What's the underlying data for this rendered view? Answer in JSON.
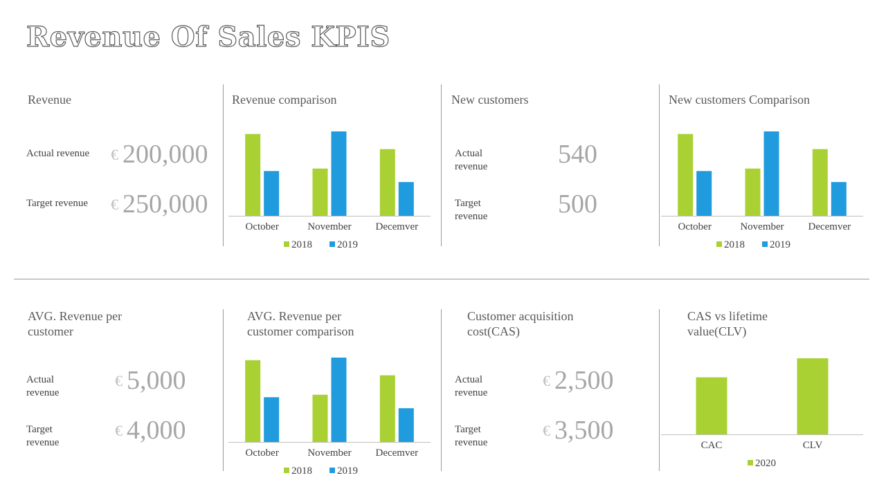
{
  "title": "Revenue Of Sales KPIS",
  "colors": {
    "s2018": "#a9d134",
    "s2019": "#1f9bde",
    "s2020": "#a9d134"
  },
  "kpis": {
    "revenue": {
      "heading": "Revenue",
      "actual_label": "Actual revenue",
      "target_label": "Target revenue",
      "currency": "€",
      "actual_value": "200,000",
      "target_value": "250,000"
    },
    "new_customers": {
      "heading": "New customers",
      "actual_label_1": "Actual",
      "actual_label_2": "revenue",
      "target_label_1": "Target",
      "target_label_2": "revenue",
      "actual_value": "540",
      "target_value": "500"
    },
    "avg_revenue": {
      "heading_1": "AVG. Revenue per",
      "heading_2": "customer",
      "actual_label_1": "Actual",
      "actual_label_2": "revenue",
      "target_label_1": "Target",
      "target_label_2": "revenue",
      "currency": "€",
      "actual_value": "5,000",
      "target_value": "4,000"
    },
    "cas": {
      "heading_1": "Customer acquisition",
      "heading_2": "cost(CAS)",
      "actual_label_1": "Actual",
      "actual_label_2": "revenue",
      "target_label_1": "Target",
      "target_label_2": "revenue",
      "currency": "€",
      "actual_value": "2,500",
      "target_value": "3,500"
    }
  },
  "chart_headings": {
    "revenue_comparison": "Revenue comparison",
    "new_customers_comparison": "New customers Comparison",
    "avg_comparison_1": "AVG. Revenue per",
    "avg_comparison_2": "customer comparison",
    "cas_clv_1": "CAS vs lifetime",
    "cas_clv_2": "value(CLV)"
  },
  "chart_data": [
    {
      "type": "bar",
      "title": "Revenue comparison",
      "categories": [
        "October",
        "November",
        "Decemver"
      ],
      "series": [
        {
          "name": "2018",
          "values": [
            0.97,
            0.56,
            0.79
          ]
        },
        {
          "name": "2019",
          "values": [
            0.53,
            1.0,
            0.4
          ]
        }
      ],
      "ylim": [
        0,
        1
      ],
      "legend": "bottom",
      "grid": false
    },
    {
      "type": "bar",
      "title": "New customers Comparison",
      "categories": [
        "October",
        "November",
        "Decemver"
      ],
      "series": [
        {
          "name": "2018",
          "values": [
            0.97,
            0.56,
            0.79
          ]
        },
        {
          "name": "2019",
          "values": [
            0.53,
            1.0,
            0.4
          ]
        }
      ],
      "ylim": [
        0,
        1
      ],
      "legend": "bottom",
      "grid": false
    },
    {
      "type": "bar",
      "title": "AVG. Revenue per customer comparison",
      "categories": [
        "October",
        "November",
        "Decemver"
      ],
      "series": [
        {
          "name": "2018",
          "values": [
            0.97,
            0.56,
            0.79
          ]
        },
        {
          "name": "2019",
          "values": [
            0.53,
            1.0,
            0.4
          ]
        }
      ],
      "ylim": [
        0,
        1
      ],
      "legend": "bottom",
      "grid": false
    },
    {
      "type": "bar",
      "title": "CAS vs lifetime value(CLV)",
      "categories": [
        "CAC",
        "CLV"
      ],
      "series": [
        {
          "name": "2020",
          "values": [
            0.75,
            1.0
          ]
        }
      ],
      "ylim": [
        0,
        1
      ],
      "legend": "bottom",
      "grid": false
    }
  ]
}
